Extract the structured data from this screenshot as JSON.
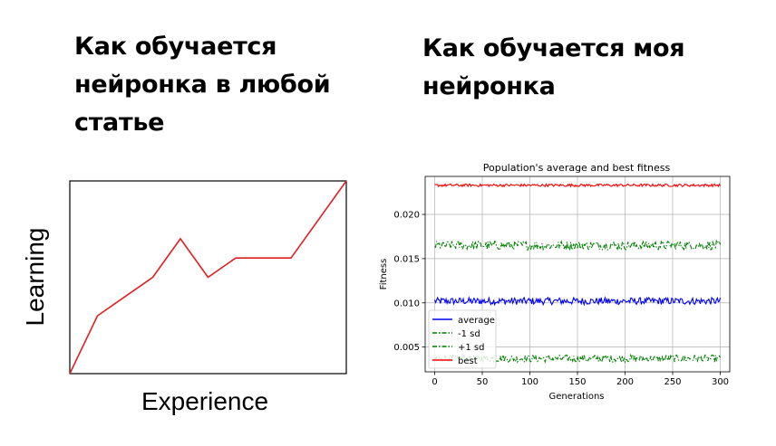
{
  "captions": {
    "left": "Как обучается нейронка в любой статье",
    "right": "Как обучается моя нейронка"
  },
  "chart_data": [
    {
      "type": "line",
      "title": "",
      "xlabel": "Experience",
      "ylabel": "Learning",
      "xlim": [
        0,
        10
      ],
      "ylim": [
        0,
        10
      ],
      "series": [
        {
          "color": "#e02020",
          "x": [
            0,
            1,
            3,
            4,
            5,
            6,
            8,
            10
          ],
          "values": [
            0,
            3,
            5,
            7,
            5,
            6,
            6,
            10
          ]
        }
      ]
    },
    {
      "type": "line",
      "title": "Population's average and best fitness",
      "xlabel": "Generations",
      "ylabel": "Fitness",
      "xlim": [
        -10,
        310
      ],
      "ylim": [
        0.0022,
        0.0243
      ],
      "grid": true,
      "xticks": [
        "0",
        "50",
        "100",
        "150",
        "200",
        "250",
        "300"
      ],
      "yticks": [
        "0.005",
        "0.010",
        "0.015",
        "0.020"
      ],
      "legend_position": "lower-left",
      "series": [
        {
          "name": "average",
          "color": "#0000ff",
          "style": "solid",
          "base": 0.0102,
          "noise": 0.0004
        },
        {
          "name": "-1 sd",
          "color": "#008000",
          "style": "dashdot",
          "base": 0.0037,
          "noise": 0.0004
        },
        {
          "name": "+1 sd",
          "color": "#008000",
          "style": "dashdot",
          "base": 0.0165,
          "noise": 0.0005
        },
        {
          "name": "best",
          "color": "#ff0000",
          "style": "solid",
          "base": 0.0233,
          "noise": 0.00015
        }
      ]
    }
  ]
}
